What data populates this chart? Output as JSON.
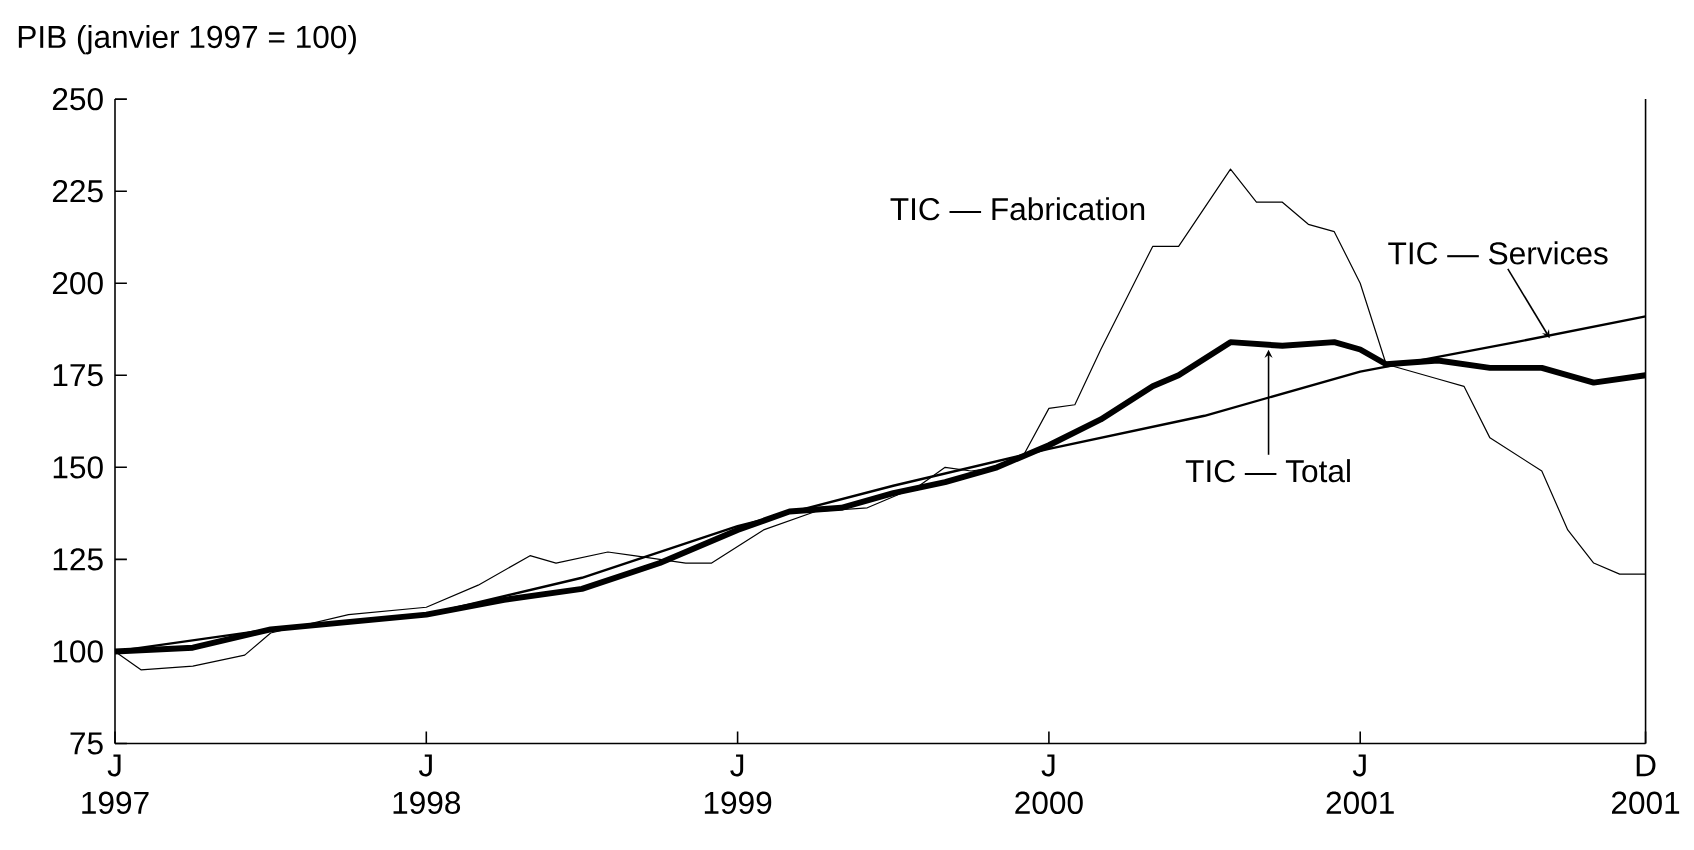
{
  "chart_data": {
    "type": "line",
    "ylabel": "PIB (janvier 1997 = 100)",
    "xlim": [
      "1997-01",
      "2001-12"
    ],
    "xticks": [
      {
        "value": "1997-01",
        "label": "J 1997"
      },
      {
        "value": "1998-01",
        "label": "J 1998"
      },
      {
        "value": "1999-01",
        "label": "J 1999"
      },
      {
        "value": "2000-01",
        "label": "J 2000"
      },
      {
        "value": "2001-01",
        "label": "J 2001"
      },
      {
        "value": "2001-12",
        "label": "D 2001"
      }
    ],
    "ylim": [
      75,
      250
    ],
    "yticks": [
      75,
      100,
      125,
      150,
      175,
      200,
      225,
      250
    ],
    "grid": false,
    "marker": "none",
    "line_style": "solid",
    "series": [
      {
        "color": "#000000",
        "x": [
          "1997-01",
          "1997-02",
          "1997-04",
          "1997-06",
          "1997-07",
          "1997-10",
          "1998-01",
          "1998-03",
          "1998-05",
          "1998-06",
          "1998-08",
          "1998-09",
          "1998-11",
          "1998-12",
          "1999-02",
          "1999-04",
          "1999-06",
          "1999-08",
          "1999-09",
          "1999-10",
          "1999-11",
          "1999-12",
          "2000-01",
          "2000-02",
          "2000-03",
          "2000-04",
          "2000-05",
          "2000-06",
          "2000-08",
          "2000-09",
          "2000-10",
          "2000-11",
          "2000-12",
          "2001-01",
          "2001-02",
          "2001-04",
          "2001-05",
          "2001-06",
          "2001-08",
          "2001-09",
          "2001-10",
          "2001-11",
          "2001-12"
        ],
        "values": [
          100,
          95,
          96,
          99,
          105,
          110,
          112,
          118,
          126,
          124,
          127,
          126,
          124,
          124,
          133,
          138,
          139,
          145,
          150,
          149,
          150,
          153,
          166,
          167,
          182,
          196,
          210,
          210,
          231,
          222,
          222,
          216,
          214,
          200,
          178,
          174,
          172,
          158,
          149,
          133,
          124,
          121,
          121
        ]
      },
      {
        "color": "#000000",
        "x": [
          "1997-01",
          "1997-07",
          "1998-01",
          "1998-07",
          "1999-01",
          "1999-07",
          "2000-01",
          "2000-07",
          "2001-01",
          "2001-07",
          "2001-12"
        ],
        "values": [
          100,
          106,
          110,
          120,
          134,
          145,
          155,
          164,
          176,
          184,
          191
        ]
      },
      {
        "color": "#000000",
        "x": [
          "1997-01",
          "1997-04",
          "1997-07",
          "1997-10",
          "1998-01",
          "1998-04",
          "1998-07",
          "1998-10",
          "1999-01",
          "1999-03",
          "1999-05",
          "1999-07",
          "1999-09",
          "1999-11",
          "2000-01",
          "2000-03",
          "2000-05",
          "2000-06",
          "2000-08",
          "2000-10",
          "2000-12",
          "2001-01",
          "2001-02",
          "2001-04",
          "2001-06",
          "2001-08",
          "2001-10",
          "2001-12"
        ],
        "values": [
          100,
          101,
          106,
          108,
          110,
          114,
          117,
          124,
          133,
          138,
          139,
          143,
          146,
          150,
          156,
          163,
          172,
          175,
          184,
          183,
          184,
          182,
          178,
          179,
          177,
          177,
          173,
          175
        ]
      }
    ],
    "annotations": [
      {
        "text": "TIC — Fabrication",
        "x": "2000-06",
        "y": 210
      },
      {
        "text": "TIC — Services",
        "x": "2001-08",
        "y": 184
      },
      {
        "text": "TIC — Total",
        "x": "2000-09-15",
        "y": 183
      }
    ]
  }
}
